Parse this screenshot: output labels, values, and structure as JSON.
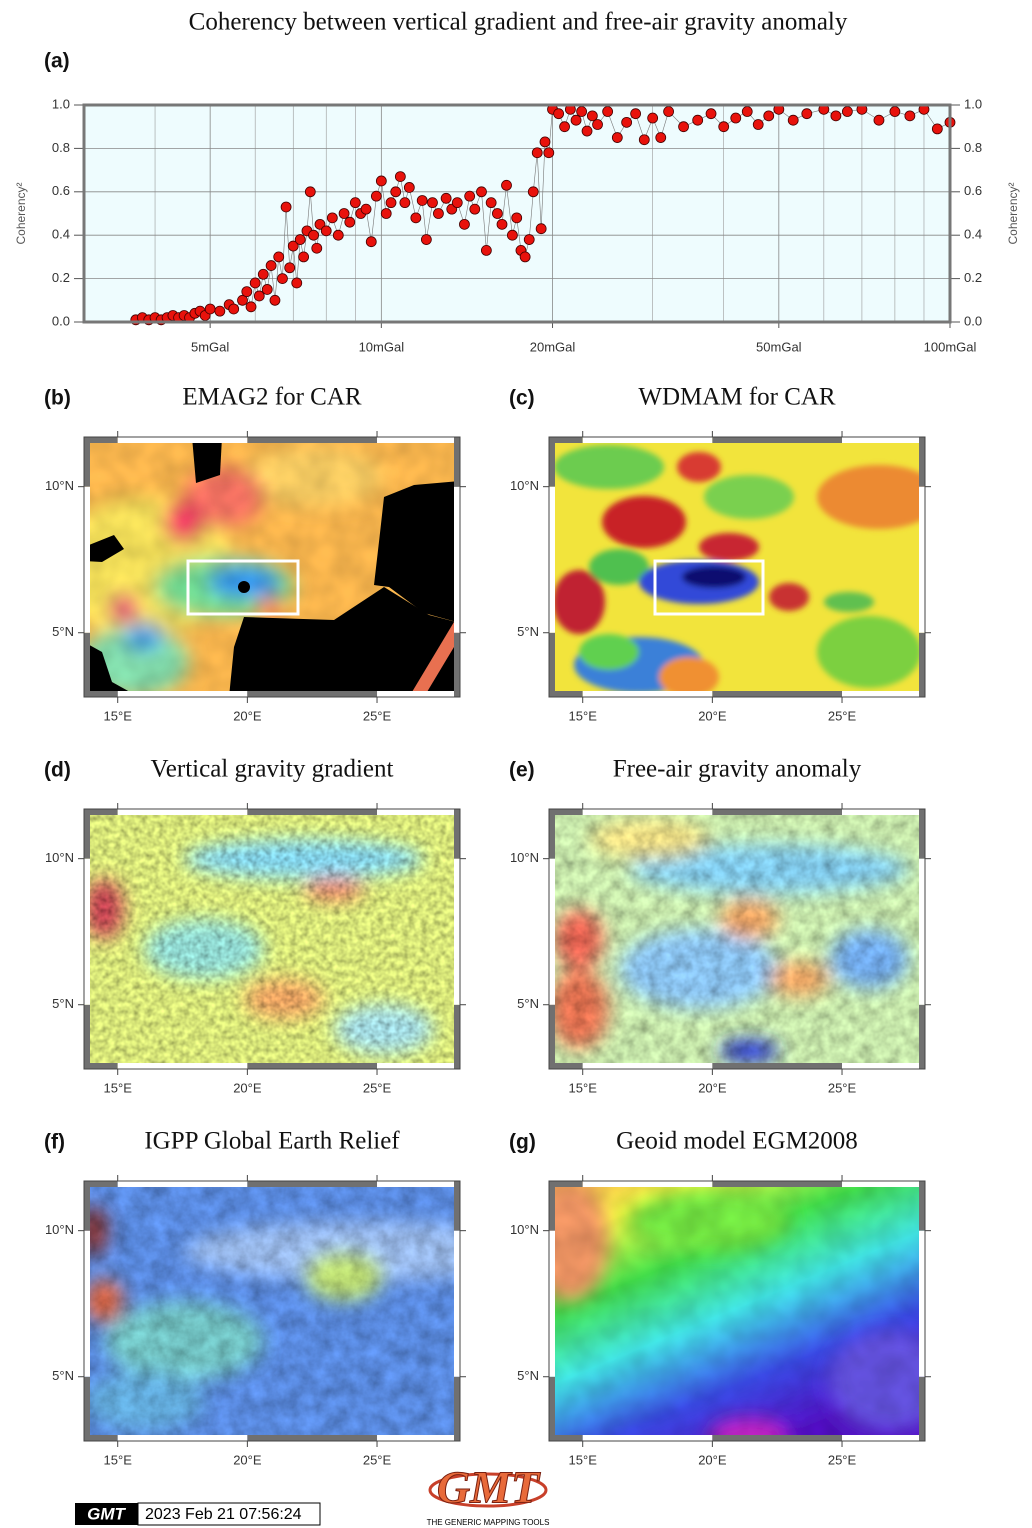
{
  "title": "Coherency between vertical gradient and free-air gravity anomaly",
  "chart_data": {
    "type": "scatter",
    "label": "(a)",
    "ylabel": "Coherency²",
    "y2label": "Coherency²",
    "xscale": "log",
    "xlim": [
      3,
      100
    ],
    "ylim": [
      0,
      1
    ],
    "xticks": [
      {
        "value": 5,
        "label": "5mGal"
      },
      {
        "value": 10,
        "label": "10mGal"
      },
      {
        "value": 20,
        "label": "20mGal"
      },
      {
        "value": 50,
        "label": "50mGal"
      },
      {
        "value": 100,
        "label": "100mGal"
      }
    ],
    "minor_xticks": [
      4,
      6,
      7,
      8,
      9,
      30,
      40,
      60,
      70,
      80,
      90
    ],
    "yticks": [
      {
        "value": 0,
        "label": "0.0"
      },
      {
        "value": 0.2,
        "label": "0.2"
      },
      {
        "value": 0.4,
        "label": "0.4"
      },
      {
        "value": 0.6,
        "label": "0.6"
      },
      {
        "value": 0.8,
        "label": "0.8"
      },
      {
        "value": 1,
        "label": "1.0"
      }
    ],
    "grid": true,
    "color": "#e8120c",
    "x": [
      3.7,
      3.8,
      3.9,
      4.0,
      4.1,
      4.2,
      4.3,
      4.4,
      4.5,
      4.6,
      4.7,
      4.8,
      4.9,
      5.0,
      5.2,
      5.4,
      5.5,
      5.7,
      5.8,
      5.9,
      6.0,
      6.1,
      6.2,
      6.3,
      6.4,
      6.5,
      6.6,
      6.7,
      6.8,
      6.9,
      7.0,
      7.1,
      7.2,
      7.3,
      7.4,
      7.5,
      7.6,
      7.7,
      7.8,
      8.0,
      8.2,
      8.4,
      8.6,
      8.8,
      9.0,
      9.2,
      9.4,
      9.6,
      9.8,
      10.0,
      10.2,
      10.4,
      10.6,
      10.8,
      11.0,
      11.2,
      11.5,
      11.8,
      12.0,
      12.3,
      12.6,
      13.0,
      13.3,
      13.6,
      14.0,
      14.3,
      14.6,
      15.0,
      15.3,
      15.6,
      16.0,
      16.3,
      16.6,
      17.0,
      17.3,
      17.6,
      17.9,
      18.2,
      18.5,
      18.8,
      19.1,
      19.4,
      19.7,
      20,
      20.5,
      21,
      21.5,
      22,
      22.5,
      23,
      23.5,
      24,
      25,
      26,
      27,
      28,
      29,
      30,
      31,
      32,
      34,
      36,
      38,
      40,
      42,
      44,
      46,
      48,
      50,
      53,
      56,
      60,
      63,
      66,
      70,
      75,
      80,
      85,
      90,
      95,
      100
    ],
    "values": [
      0.01,
      0.02,
      0.01,
      0.02,
      0.01,
      0.02,
      0.03,
      0.02,
      0.03,
      0.02,
      0.04,
      0.05,
      0.03,
      0.06,
      0.05,
      0.08,
      0.06,
      0.1,
      0.14,
      0.07,
      0.18,
      0.12,
      0.22,
      0.15,
      0.26,
      0.1,
      0.3,
      0.2,
      0.53,
      0.25,
      0.35,
      0.18,
      0.38,
      0.3,
      0.42,
      0.6,
      0.4,
      0.34,
      0.45,
      0.42,
      0.48,
      0.4,
      0.5,
      0.46,
      0.55,
      0.5,
      0.52,
      0.37,
      0.58,
      0.65,
      0.5,
      0.55,
      0.6,
      0.67,
      0.55,
      0.62,
      0.48,
      0.56,
      0.38,
      0.55,
      0.5,
      0.57,
      0.52,
      0.55,
      0.45,
      0.58,
      0.52,
      0.6,
      0.33,
      0.55,
      0.5,
      0.45,
      0.63,
      0.4,
      0.48,
      0.33,
      0.3,
      0.38,
      0.6,
      0.78,
      0.43,
      0.83,
      0.78,
      0.98,
      0.96,
      0.9,
      0.98,
      0.93,
      0.97,
      0.88,
      0.95,
      0.91,
      0.97,
      0.85,
      0.92,
      0.96,
      0.84,
      0.94,
      0.85,
      0.97,
      0.9,
      0.93,
      0.96,
      0.9,
      0.94,
      0.97,
      0.91,
      0.95,
      0.98,
      0.93,
      0.96,
      0.98,
      0.95,
      0.97,
      0.98,
      0.93,
      0.97,
      0.95,
      0.98,
      0.89,
      0.92
    ]
  },
  "map_axes": {
    "lonlim": [
      13.7,
      28.2
    ],
    "latlim": [
      2.8,
      11.7
    ],
    "lonticks": [
      {
        "value": 15,
        "label": "15°E"
      },
      {
        "value": 20,
        "label": "20°E"
      },
      {
        "value": 25,
        "label": "25°E"
      }
    ],
    "latticks": [
      {
        "value": 5,
        "label": "5°N"
      },
      {
        "value": 10,
        "label": "10°N"
      }
    ]
  },
  "maps": [
    {
      "label": "(b)",
      "title": "EMAG2 for CAR"
    },
    {
      "label": "(c)",
      "title": "WDMAM for CAR"
    },
    {
      "label": "(d)",
      "title": "Vertical gravity gradient"
    },
    {
      "label": "(e)",
      "title": "Free-air gravity anomaly"
    },
    {
      "label": "(f)",
      "title": "IGPP Global Earth Relief"
    },
    {
      "label": "(g)",
      "title": "Geoid model EGM2008"
    }
  ],
  "footer": {
    "badge": "GMT",
    "timestamp": "2023 Feb 21 07:56:24",
    "logo": "GMT",
    "logo_caption": "THE GENERIC MAPPING TOOLS"
  }
}
